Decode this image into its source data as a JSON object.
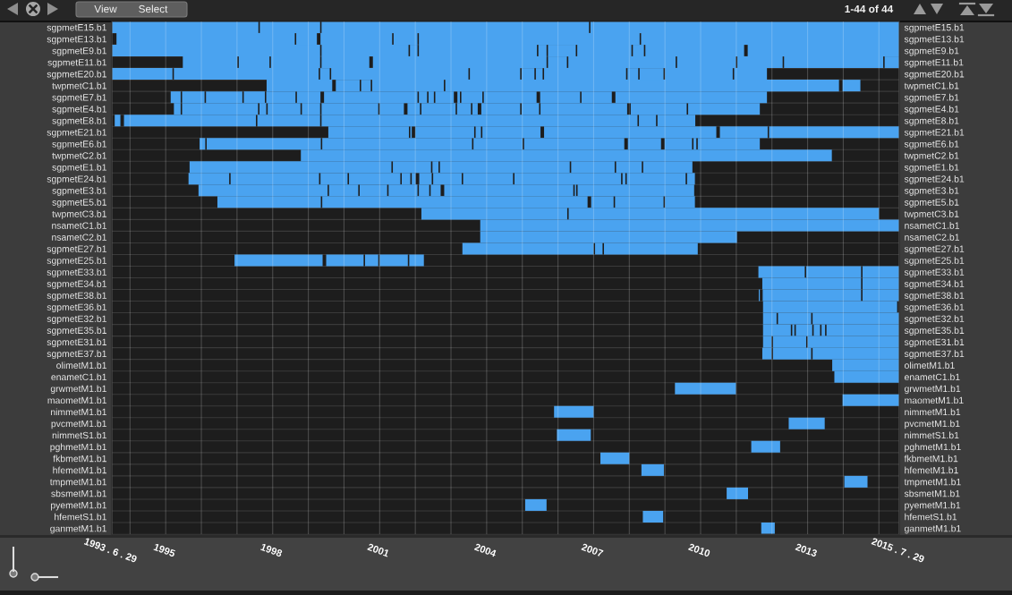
{
  "chart_data": {
    "type": "bar",
    "orientation": "horizontal",
    "categories": [
      "sgpmetE15.b1",
      "sgpmetE13.b1",
      "sgpmetE9.b1",
      "sgpmetE11.b1",
      "sgpmetE20.b1",
      "twpmetC1.b1",
      "sgpmetE7.b1",
      "sgpmetE4.b1",
      "sgpmetE8.b1",
      "sgpmetE21.b1",
      "sgpmetE6.b1",
      "twpmetC2.b1",
      "sgpmetE1.b1",
      "sgpmetE24.b1",
      "sgpmetE3.b1",
      "sgpmetE5.b1",
      "twpmetC3.b1",
      "nsametC1.b1",
      "nsametC2.b1",
      "sgpmetE27.b1",
      "sgpmetE25.b1",
      "sgpmetE33.b1",
      "sgpmetE34.b1",
      "sgpmetE38.b1",
      "sgpmetE36.b1",
      "sgpmetE32.b1",
      "sgpmetE35.b1",
      "sgpmetE31.b1",
      "sgpmetE37.b1",
      "olimetM1.b1",
      "enametC1.b1",
      "grwmetM1.b1",
      "maometM1.b1",
      "nimmetM1.b1",
      "pvcmetM1.b1",
      "nimmetS1.b1",
      "pghmetM1.b1",
      "fkbmetM1.b1",
      "hfemetM1.b1",
      "tmpmetM1.b1",
      "sbsmetM1.b1",
      "pyemetM1.b1",
      "hfemetS1.b1",
      "ganmetM1.b1"
    ],
    "y2_categories": [
      "sgpmetE15.b1",
      "sgpmetE13.b1",
      "sgpmetE9.b1",
      "sgpmetE11.b1",
      "sgpmetE20.b1",
      "twpmetC1.b1",
      "sgpmetE7.b1",
      "sgpmetE4.b1",
      "sgpmetE8.b1",
      "sgpmetE21.b1",
      "sgpmetE6.b1",
      "twpmetC2.b1",
      "sgpmetE1.b1",
      "sgpmetE24.b1",
      "sgpmetE3.b1",
      "sgpmetE5.b1",
      "twpmetC3.b1",
      "nsametC1.b1",
      "nsametC2.b1",
      "sgpmetE27.b1",
      "sgpmetE25.b1",
      "sgpmetE33.b1",
      "sgpmetE34.b1",
      "sgpmetE38.b1",
      "sgpmetE36.b1",
      "sgpmetE32.b1",
      "sgpmetE35.b1",
      "sgpmetE31.b1",
      "sgpmetE37.b1",
      "olimetM1.b1",
      "enametC1.b1",
      "grwmetM1.b1",
      "maometM1.b1",
      "nimmetM1.b1",
      "pvcmetM1.b1",
      "nimmetS1.b1",
      "pghmetM1.b1",
      "fkbmetM1.b1",
      "hfemetM1.b1",
      "tmpmetM1.b1",
      "sbsmetM1.b1",
      "pyemetM1.b1",
      "hfemetS1.b1",
      "ganmetM1.b1"
    ],
    "series": [
      {
        "color": "#4aa3f0",
        "base": [
          1993.49,
          1993.62,
          1993.49,
          1995.48,
          1993.49,
          1997.83,
          1995.14,
          1995.23,
          1993.57,
          1999.56,
          1995.95,
          1998.79,
          1995.67,
          1995.64,
          1995.92,
          1996.45,
          2002.17,
          2003.82,
          2003.82,
          2003.32,
          1996.93,
          2011.62,
          2011.73,
          2011.63,
          2011.75,
          2011.75,
          2011.75,
          2011.75,
          2011.73,
          2013.69,
          2013.75,
          2009.28,
          2013.98,
          2005.89,
          2012.47,
          2005.97,
          2011.42,
          2007.19,
          2008.34,
          2014.03,
          2010.73,
          2005.08,
          2008.38,
          2011.7
        ],
        "values": [
          4.11,
          5.0,
          5.84,
          1.53,
          1.7,
          1.84,
          0.28,
          0.19,
          0.16,
          2.26,
          0.16,
          14.89,
          5.66,
          1.14,
          3.62,
          2.9,
          4.09,
          11.75,
          7.2,
          3.68,
          2.47,
          1.3,
          2.77,
          0.03,
          3.76,
          0.38,
          0.78,
          0.24,
          0.26,
          1.88,
          1.82,
          1.71,
          1.59,
          1.11,
          1.01,
          0.95,
          0.81,
          0.81,
          0.63,
          0.65,
          0.6,
          0.6,
          0.57,
          0.38
        ]
      },
      {
        "color": "#4aa3f0",
        "base": [
          1997.64,
          1998.66,
          1999.37,
          1997.05,
          1995.23,
          1999.77,
          1995.46,
          1995.46,
          1993.83,
          2001.86,
          1996.15,
          null,
          2001.37,
          1996.82,
          1999.58,
          1999.39,
          2006.3,
          null,
          null,
          2007.04,
          1999.5,
          2012.96,
          2014.54,
          2011.74,
          null,
          2012.17,
          2012.57,
          2012.03,
          2012.03,
          null,
          null,
          null,
          null,
          null,
          null,
          null,
          null,
          null,
          null,
          null,
          null,
          null,
          null,
          null
        ],
        "values": [
          1.69,
          0.58,
          2.44,
          0.86,
          4.06,
          0.67,
          0.63,
          2.13,
          3.7,
          0.04,
          3.2,
          null,
          1.07,
          2.48,
          0.82,
          7.44,
          8.7,
          null,
          null,
          0.21,
          1.05,
          1.54,
          1.03,
          2.76,
          null,
          0.93,
          0.06,
          0.93,
          1.07,
          null,
          null,
          null,
          null,
          null,
          null,
          null,
          null,
          null,
          null,
          null,
          null,
          null,
          null,
          null
        ]
      },
      {
        "color": "#4aa3f0",
        "base": [
          1999.37,
          1999.34,
          2001.85,
          1997.95,
          1999.33,
          2000.48,
          1996.13,
          1997.63,
          1997.57,
          2002.0,
          1999.39,
          null,
          2002.48,
          1999.34,
          2000.44,
          2006.93,
          null,
          null,
          null,
          2007.29,
          2000.59,
          2014.54,
          null,
          2014.54,
          null,
          2013.14,
          2012.67,
          2013.0,
          2013.14,
          null,
          null,
          null,
          null,
          null,
          null,
          null,
          null,
          null,
          null,
          null,
          null,
          null,
          null,
          null
        ],
        "values": [
          7.5,
          2.01,
          0.21,
          1.38,
          0.27,
          0.27,
          1.02,
          0.19,
          1.76,
          1.65,
          4.2,
          null,
          0.17,
          0.76,
          0.77,
          0.63,
          null,
          null,
          null,
          2.63,
          0.37,
          1.03,
          null,
          1.03,
          null,
          2.43,
          0.46,
          2.57,
          2.43,
          null,
          null,
          null,
          null,
          null,
          null,
          null,
          null,
          null,
          null,
          null,
          null,
          null,
          null,
          null
        ]
      },
      {
        "color": "#4aa3f0",
        "base": [
          2006.91,
          2001.39,
          2002.1,
          1999.37,
          1999.64,
          2000.79,
          1997.19,
          1997.86,
          1999.37,
          2003.69,
          2003.63,
          null,
          2002.69,
          2000.14,
          2001.25,
          2007.6,
          null,
          null,
          null,
          null,
          2001.0,
          null,
          null,
          null,
          null,
          null,
          2013.17,
          null,
          null,
          null,
          null,
          null,
          null,
          null,
          null,
          null,
          null,
          null,
          null,
          null,
          null,
          null,
          null,
          null
        ],
        "values": [
          8.66,
          0.67,
          3.31,
          1.34,
          3.85,
          2.01,
          0.59,
          0.92,
          8.86,
          0.15,
          1.38,
          null,
          3.64,
          1.44,
          0.81,
          1.36,
          null,
          null,
          null,
          null,
          0.79,
          null,
          null,
          null,
          null,
          null,
          0.18,
          null,
          null,
          null,
          null,
          null,
          null,
          null,
          null,
          null,
          null,
          null,
          null,
          null,
          null,
          null,
          null,
          null
        ]
      },
      {
        "color": "#4aa3f0",
        "base": [
          null,
          2002.1,
          2005.45,
          2000.81,
          2003.53,
          2002.84,
          1997.82,
          1998.82,
          2008.27,
          2003.88,
          2005.05,
          null,
          2006.37,
          2001.62,
          2002.1,
          2009.0,
          null,
          null,
          null,
          null,
          2001.83,
          null,
          null,
          null,
          null,
          null,
          2013.39,
          null,
          null,
          null,
          null,
          null,
          null,
          null,
          null,
          null,
          null,
          null,
          null,
          null,
          null,
          null,
          null,
          null
        ],
        "values": [
          null,
          6.19,
          0.23,
          4.87,
          1.41,
          11.04,
          0.82,
          0.51,
          0.48,
          1.63,
          2.81,
          null,
          1.22,
          0.24,
          0.29,
          0.84,
          null,
          null,
          null,
          null,
          0.41,
          null,
          null,
          null,
          null,
          null,
          0.1,
          null,
          null,
          null,
          null,
          null,
          null,
          null,
          null,
          null,
          null,
          null,
          null,
          null,
          null,
          null,
          null,
          null
        ]
      },
      {
        "color": "#4aa3f0",
        "base": [
          null,
          2008.33,
          2005.72,
          2005.72,
          2004.98,
          2013.98,
          1998.68,
          1999.37,
          2008.79,
          2005.61,
          2007.96,
          null,
          2007.63,
          2001.9,
          2002.43,
          null,
          null,
          null,
          null,
          null,
          null,
          null,
          null,
          null,
          null,
          null,
          2013.53,
          null,
          null,
          null,
          null,
          null,
          null,
          null,
          null,
          null,
          null,
          null,
          null,
          null,
          null,
          null,
          null,
          null
        ],
        "values": [
          null,
          7.24,
          0.78,
          0.53,
          0.36,
          0.5,
          0.66,
          1.59,
          1.06,
          4.83,
          0.93,
          null,
          0.72,
          0.11,
          0.28,
          null,
          null,
          null,
          null,
          null,
          null,
          null,
          null,
          null,
          null,
          null,
          2.04,
          null,
          null,
          null,
          null,
          null,
          null,
          null,
          null,
          null,
          null,
          null,
          null,
          null,
          null,
          null,
          null,
          null
        ]
      },
      {
        "color": "#4aa3f0",
        "base": [
          null,
          null,
          2006.54,
          2006.29,
          2005.38,
          null,
          1999.44,
          2001.0,
          null,
          2010.54,
          2008.99,
          null,
          2008.39,
          2002.11,
          2002.81,
          null,
          null,
          null,
          null,
          null,
          null,
          null,
          null,
          null,
          null,
          null,
          null,
          null,
          null,
          null,
          null,
          null,
          null,
          null,
          null,
          null,
          null,
          null,
          null,
          null,
          null,
          null,
          null,
          null
        ],
        "values": [
          null,
          null,
          1.52,
          3.01,
          0.19,
          null,
          2.62,
          0.68,
          null,
          1.34,
          0.77,
          null,
          1.38,
          0.35,
          3.62,
          null,
          null,
          null,
          null,
          null,
          null,
          null,
          null,
          null,
          null,
          null,
          null,
          null,
          null,
          null,
          null,
          null,
          null,
          null,
          null,
          null,
          null,
          null,
          null,
          null,
          null,
          null,
          null,
          null
        ]
      },
      {
        "color": "#4aa3f0",
        "base": [
          null,
          null,
          2008.1,
          2009.34,
          2005.61,
          null,
          2002.1,
          2001.78,
          null,
          2011.92,
          2009.8,
          null,
          null,
          2002.5,
          2006.47,
          null,
          null,
          null,
          null,
          null,
          null,
          null,
          null,
          null,
          null,
          null,
          null,
          null,
          null,
          null,
          null,
          null,
          null,
          null,
          null,
          null,
          null,
          null,
          null,
          null,
          null,
          null,
          null,
          null
        ],
        "values": [
          null,
          null,
          0.31,
          1.65,
          2.3,
          null,
          0.23,
          0.35,
          null,
          3.65,
          0.08,
          null,
          null,
          0.8,
          0.04,
          null,
          null,
          null,
          null,
          null,
          null,
          null,
          null,
          null,
          null,
          null,
          null,
          null,
          null,
          null,
          null,
          null,
          null,
          null,
          null,
          null,
          null,
          null,
          null,
          null,
          null,
          null,
          null,
          null
        ]
      },
      {
        "color": "#4aa3f0",
        "base": [
          null,
          null,
          2008.45,
          2011.03,
          2007.95,
          null,
          2002.37,
          2002.17,
          null,
          null,
          2009.92,
          null,
          null,
          2003.34,
          2006.55,
          null,
          null,
          null,
          null,
          null,
          null,
          null,
          null,
          null,
          null,
          null,
          null,
          null,
          null,
          null,
          null,
          null,
          null,
          null,
          null,
          null,
          null,
          null,
          null,
          null,
          null,
          null,
          null,
          null
        ],
        "values": [
          null,
          null,
          2.77,
          1.27,
          0.3,
          null,
          0.15,
          0.96,
          null,
          null,
          1.74,
          null,
          null,
          1.4,
          3.27,
          null,
          null,
          null,
          null,
          null,
          null,
          null,
          null,
          null,
          null,
          null,
          null,
          null,
          null,
          null,
          null,
          null,
          null,
          null,
          null,
          null,
          null,
          null,
          null,
          null,
          null,
          null,
          null,
          null
        ]
      },
      {
        "color": "#4aa3f0",
        "base": [
          null,
          null,
          2011.32,
          2012.34,
          2008.29,
          null,
          2002.56,
          2003.17,
          null,
          null,
          null,
          null,
          null,
          2004.78,
          null,
          null,
          null,
          null,
          null,
          null,
          null,
          null,
          null,
          null,
          null,
          null,
          null,
          null,
          null,
          null,
          null,
          null,
          null,
          null,
          null,
          null,
          null,
          null,
          null,
          null,
          null,
          null,
          null,
          null
        ],
        "values": [
          null,
          null,
          4.25,
          2.78,
          0.67,
          null,
          0.52,
          0.39,
          null,
          null,
          null,
          null,
          null,
          2.99,
          null,
          null,
          null,
          null,
          null,
          null,
          null,
          null,
          null,
          null,
          null,
          null,
          null,
          null,
          null,
          null,
          null,
          null,
          null,
          null,
          null,
          null,
          null,
          null,
          null,
          null,
          null,
          null,
          null,
          null
        ]
      },
      {
        "color": "#4aa3f0",
        "base": [
          null,
          null,
          null,
          2015.16,
          2009.0,
          null,
          2003.18,
          2003.6,
          null,
          null,
          null,
          null,
          null,
          2007.81,
          null,
          null,
          null,
          null,
          null,
          null,
          null,
          null,
          null,
          null,
          null,
          null,
          null,
          null,
          null,
          null,
          null,
          null,
          null,
          null,
          null,
          null,
          null,
          null,
          null,
          null,
          null,
          null,
          null,
          null
        ],
        "values": [
          null,
          null,
          null,
          0.41,
          1.9,
          null,
          0.07,
          0.15,
          null,
          null,
          null,
          null,
          null,
          0.08,
          null,
          null,
          null,
          null,
          null,
          null,
          null,
          null,
          null,
          null,
          null,
          null,
          null,
          null,
          null,
          null,
          null,
          null,
          null,
          null,
          null,
          null,
          null,
          null,
          null,
          null,
          null,
          null,
          null,
          null
        ]
      },
      {
        "color": "#4aa3f0",
        "base": [
          null,
          null,
          null,
          null,
          2010.94,
          null,
          2003.29,
          2003.85,
          null,
          null,
          null,
          null,
          null,
          2007.93,
          null,
          null,
          null,
          null,
          null,
          null,
          null,
          null,
          null,
          null,
          null,
          null,
          null,
          null,
          null,
          null,
          null,
          null,
          null,
          null,
          null,
          null,
          null,
          null,
          null,
          null,
          null,
          null,
          null,
          null
        ],
        "values": [
          null,
          null,
          null,
          null,
          0.92,
          null,
          0.59,
          1.09,
          null,
          null,
          null,
          null,
          null,
          1.65,
          null,
          null,
          null,
          null,
          null,
          null,
          null,
          null,
          null,
          null,
          null,
          null,
          null,
          null,
          null,
          null,
          null,
          null,
          null,
          null,
          null,
          null,
          null,
          null,
          null,
          null,
          null,
          null,
          null,
          null
        ]
      },
      {
        "color": "#4aa3f0",
        "base": [
          null,
          null,
          null,
          null,
          null,
          null,
          2003.92,
          2004.98,
          null,
          null,
          null,
          null,
          null,
          2009.62,
          null,
          null,
          null,
          null,
          null,
          null,
          null,
          null,
          null,
          null,
          null,
          null,
          null,
          null,
          null,
          null,
          null,
          null,
          null,
          null,
          null,
          null,
          null,
          null,
          null,
          null,
          null,
          null,
          null,
          null
        ],
        "values": [
          null,
          null,
          null,
          null,
          null,
          null,
          1.48,
          0.49,
          null,
          null,
          null,
          null,
          null,
          0.22,
          null,
          null,
          null,
          null,
          null,
          null,
          null,
          null,
          null,
          null,
          null,
          null,
          null,
          null,
          null,
          null,
          null,
          null,
          null,
          null,
          null,
          null,
          null,
          null,
          null,
          null,
          null,
          null,
          null,
          null
        ]
      },
      {
        "color": "#4aa3f0",
        "base": [
          null,
          null,
          null,
          null,
          null,
          null,
          2005.5,
          2005.51,
          null,
          null,
          null,
          null,
          null,
          null,
          null,
          null,
          null,
          null,
          null,
          null,
          null,
          null,
          null,
          null,
          null,
          null,
          null,
          null,
          null,
          null,
          null,
          null,
          null,
          null,
          null,
          null,
          null,
          null,
          null,
          null,
          null,
          null,
          null,
          null
        ],
        "values": [
          null,
          null,
          null,
          null,
          null,
          null,
          1.12,
          2.43,
          null,
          null,
          null,
          null,
          null,
          null,
          null,
          null,
          null,
          null,
          null,
          null,
          null,
          null,
          null,
          null,
          null,
          null,
          null,
          null,
          null,
          null,
          null,
          null,
          null,
          null,
          null,
          null,
          null,
          null,
          null,
          null,
          null,
          null,
          null,
          null
        ]
      },
      {
        "color": "#4aa3f0",
        "base": [
          null,
          null,
          null,
          null,
          null,
          null,
          2006.66,
          2008.04,
          null,
          null,
          null,
          null,
          null,
          null,
          null,
          null,
          null,
          null,
          null,
          null,
          null,
          null,
          null,
          null,
          null,
          null,
          null,
          null,
          null,
          null,
          null,
          null,
          null,
          null,
          null,
          null,
          null,
          null,
          null,
          null,
          null,
          null,
          null,
          null
        ],
        "values": [
          null,
          null,
          null,
          null,
          null,
          null,
          0.85,
          1.57,
          null,
          null,
          null,
          null,
          null,
          null,
          null,
          null,
          null,
          null,
          null,
          null,
          null,
          null,
          null,
          null,
          null,
          null,
          null,
          null,
          null,
          null,
          null,
          null,
          null,
          null,
          null,
          null,
          null,
          null,
          null,
          null,
          null,
          null,
          null,
          null
        ]
      },
      {
        "color": "#4aa3f0",
        "base": [
          null,
          null,
          null,
          null,
          null,
          null,
          2007.61,
          2009.65,
          null,
          null,
          null,
          null,
          null,
          null,
          null,
          null,
          null,
          null,
          null,
          null,
          null,
          null,
          null,
          null,
          null,
          null,
          null,
          null,
          null,
          null,
          null,
          null,
          null,
          null,
          null,
          null,
          null,
          null,
          null,
          null,
          null,
          null,
          null,
          null
        ],
        "values": [
          null,
          null,
          null,
          null,
          null,
          null,
          4.25,
          2.01,
          null,
          null,
          null,
          null,
          null,
          null,
          null,
          null,
          null,
          null,
          null,
          null,
          null,
          null,
          null,
          null,
          null,
          null,
          null,
          null,
          null,
          null,
          null,
          null,
          null,
          null,
          null,
          null,
          null,
          null,
          null,
          null,
          null,
          null,
          null,
          null
        ]
      }
    ],
    "xlim": [
      1993.49,
      2015.57
    ],
    "xticks": [
      {
        "value": 1993.49,
        "label": "1993 . 6 . 29"
      },
      {
        "value": 1994,
        "label": null
      },
      1995,
      {
        "value": 1996,
        "label": null
      },
      {
        "value": 1997,
        "label": null
      },
      1998,
      {
        "value": 1999,
        "label": null
      },
      {
        "value": 2000,
        "label": null
      },
      2001,
      {
        "value": 2002,
        "label": null
      },
      {
        "value": 2003,
        "label": null
      },
      2004,
      {
        "value": 2005,
        "label": null
      },
      {
        "value": 2006,
        "label": null
      },
      2007,
      {
        "value": 2008,
        "label": null
      },
      {
        "value": 2009,
        "label": null
      },
      2010,
      {
        "value": 2011,
        "label": null
      },
      {
        "value": 2012,
        "label": null
      },
      2013,
      {
        "value": 2014,
        "label": null
      },
      {
        "value": 2015,
        "label": null
      },
      {
        "value": 2015.57,
        "label": "2015 . 7 . 29"
      }
    ],
    "grid": true,
    "annotations": [
      "View",
      "Select",
      "1-44 of 44"
    ]
  }
}
